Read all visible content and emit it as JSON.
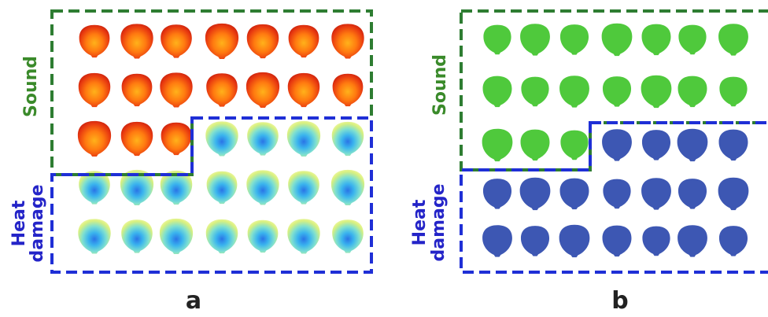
{
  "panels": [
    {
      "label": "a",
      "sound_label": "Sound",
      "heat_label_line1": "Heat",
      "heat_label_line2": "damage",
      "style": "heatmap",
      "grid": [
        [
          "sound",
          "sound",
          "sound",
          "sound",
          "sound",
          "sound",
          "sound"
        ],
        [
          "sound",
          "sound",
          "sound",
          "sound",
          "sound",
          "sound",
          "sound"
        ],
        [
          "sound",
          "sound",
          "sound",
          "heat",
          "heat",
          "heat",
          "heat"
        ],
        [
          "heat",
          "heat",
          "heat",
          "heat",
          "heat",
          "heat",
          "heat"
        ],
        [
          "heat",
          "heat",
          "heat",
          "heat",
          "heat",
          "heat",
          "heat"
        ]
      ]
    },
    {
      "label": "b",
      "sound_label": "Sound",
      "heat_label_line1": "Heat",
      "heat_label_line2": "damage",
      "style": "classified",
      "grid": [
        [
          "sound",
          "sound",
          "sound",
          "sound",
          "sound",
          "sound",
          "sound"
        ],
        [
          "sound",
          "sound",
          "sound",
          "sound",
          "sound",
          "sound",
          "sound"
        ],
        [
          "sound",
          "sound",
          "sound",
          "heat",
          "heat",
          "heat",
          "heat"
        ],
        [
          "heat",
          "heat",
          "heat",
          "heat",
          "heat",
          "heat",
          "heat"
        ],
        [
          "heat",
          "heat",
          "heat",
          "heat",
          "heat",
          "heat",
          "heat"
        ]
      ]
    }
  ],
  "colors": {
    "sound_border": "#2e7d32",
    "heat_border": "#1f2fd6",
    "sound_text": "#3a8a2a",
    "heat_text": "#2424c8",
    "class_sound": "#4fc93c",
    "class_heat": "#3d57b3",
    "label_text": "#222222"
  }
}
